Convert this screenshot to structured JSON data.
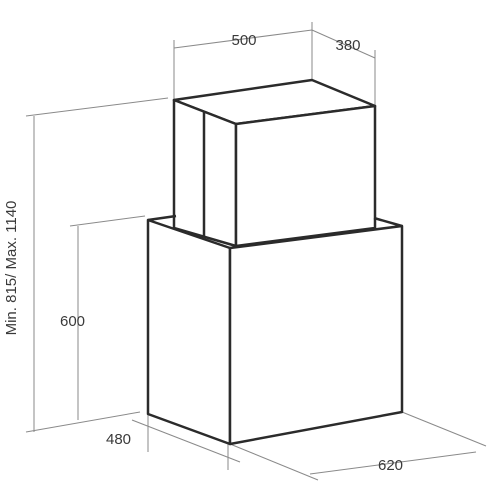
{
  "dimensions": {
    "chimney_width": "500",
    "chimney_depth": "380",
    "total_height": "Min. 815/ Max. 1140",
    "hood_height": "600",
    "hood_depth": "480",
    "hood_width": "620"
  }
}
